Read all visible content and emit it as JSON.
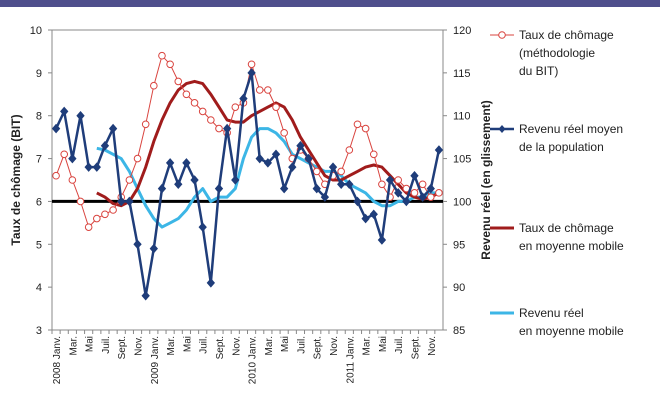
{
  "chart_data": {
    "type": "line",
    "categories": [
      "2008 Janv.",
      null,
      "Mar.",
      null,
      "Mai",
      null,
      "Juil.",
      null,
      "Sept.",
      null,
      "Nov.",
      null,
      "2009 Janv.",
      null,
      "Mar.",
      null,
      "Mai",
      null,
      "Juil.",
      null,
      "Sept.",
      null,
      "Nov.",
      null,
      "2010 Janv.",
      null,
      "Mar.",
      null,
      "Mai",
      null,
      "Juil.",
      null,
      "Sept.",
      null,
      "Nov.",
      null,
      "2011 Janv.",
      null,
      "Mar.",
      null,
      "Mai",
      null,
      "Juil.",
      null,
      "Sept.",
      null,
      "Nov.",
      null
    ],
    "ylabel": "Taux de chômage (BIT)",
    "y2label": "Revenu réel (en glissement)",
    "ylim": [
      3,
      10
    ],
    "yticks": [
      3,
      4,
      5,
      6,
      7,
      8,
      9,
      10
    ],
    "y2lim": [
      85,
      120
    ],
    "y2ticks": [
      85,
      90,
      95,
      100,
      105,
      110,
      115,
      120
    ],
    "reference_line": {
      "value": 6,
      "color": "#000000"
    },
    "series": [
      {
        "name": "Taux de chômage\n(méthodologie\ndu BIT)",
        "color": "#d9443f",
        "axis": "y",
        "marker": "circle-open",
        "line_width": 1,
        "values": [
          6.6,
          7.1,
          6.5,
          6.0,
          5.4,
          5.6,
          5.7,
          5.8,
          6.1,
          6.5,
          7.0,
          7.8,
          8.7,
          9.4,
          9.2,
          8.8,
          8.5,
          8.3,
          8.1,
          7.9,
          7.7,
          7.6,
          8.2,
          8.3,
          9.2,
          8.6,
          8.6,
          8.2,
          7.6,
          7.0,
          7.2,
          7.0,
          6.7,
          6.4,
          6.6,
          6.7,
          7.2,
          7.8,
          7.7,
          7.1,
          6.4,
          6.1,
          6.5,
          6.3,
          6.2,
          6.4,
          6.1,
          6.2
        ]
      },
      {
        "name": "Revenu réel moyen\nde la population",
        "color": "#1f3d7a",
        "axis": "y2",
        "marker": "diamond",
        "line_width": 2.5,
        "values": [
          108.5,
          110.5,
          105,
          110,
          104,
          104,
          106.5,
          108.5,
          100,
          100,
          95,
          89,
          94.5,
          101.5,
          104.5,
          102,
          104.5,
          102.5,
          97,
          90.5,
          101.5,
          108.5,
          102.5,
          112,
          115,
          105,
          104.5,
          105.5,
          101.5,
          104,
          106.5,
          105,
          101.5,
          100.5,
          104,
          102,
          102,
          100,
          98,
          98.5,
          95.5,
          102.5,
          101,
          100,
          103,
          100.5,
          101.5,
          106
        ]
      },
      {
        "name": "Taux de chômage\nen moyenne mobile",
        "color": "#a01c1c",
        "axis": "y",
        "marker": "none",
        "line_width": 3,
        "values": [
          null,
          null,
          null,
          null,
          null,
          6.2,
          6.1,
          5.95,
          5.9,
          6.0,
          6.3,
          6.8,
          7.4,
          7.9,
          8.3,
          8.6,
          8.75,
          8.8,
          8.75,
          8.5,
          8.2,
          7.9,
          7.85,
          7.85,
          8.0,
          8.1,
          8.2,
          8.3,
          8.2,
          7.9,
          7.5,
          7.2,
          6.9,
          6.6,
          6.5,
          6.5,
          6.6,
          6.7,
          6.8,
          6.85,
          6.8,
          6.6,
          6.4,
          6.2,
          6.1,
          6.05,
          6.1,
          6.2
        ]
      },
      {
        "name": "Revenu réel\nen moyenne mobile",
        "color": "#3cb6e6",
        "axis": "y2",
        "marker": "none",
        "line_width": 3,
        "values": [
          null,
          null,
          null,
          null,
          null,
          106.2,
          106,
          105.5,
          105,
          103.5,
          101.5,
          99.5,
          98,
          97,
          97.5,
          98,
          99,
          100.5,
          101.5,
          100,
          100.5,
          100.5,
          101.5,
          105,
          107.5,
          108.5,
          108.5,
          108,
          107,
          105.5,
          105,
          104.5,
          104,
          103.5,
          103.5,
          103,
          102,
          101.5,
          101,
          100,
          99.5,
          99.5,
          100,
          100,
          100.5,
          100.5,
          101,
          101
        ]
      }
    ]
  }
}
